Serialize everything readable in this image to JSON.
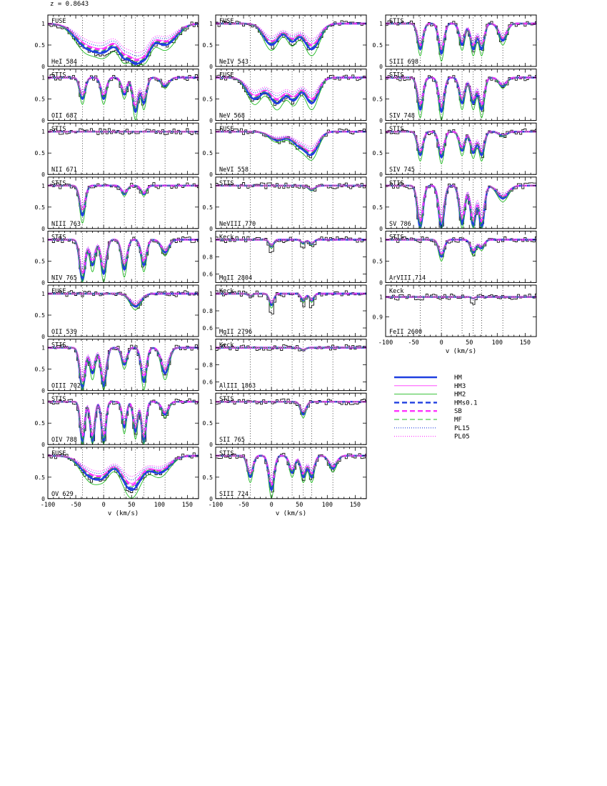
{
  "figure": {
    "redshift_label": "z = 0.8643"
  },
  "chart_data": {
    "type": "line",
    "title": "",
    "redshift": 0.8643,
    "xlabel": "v (km/s)",
    "xlim": [
      -100,
      170
    ],
    "xticks": [
      -100,
      -50,
      0,
      50,
      100,
      150
    ],
    "component_velocities": [
      -38,
      0,
      37,
      57,
      72,
      110
    ],
    "series_styles": [
      {
        "name": "HM",
        "color": "#1f3fe0",
        "dash": "",
        "width": 2.4
      },
      {
        "name": "HM3",
        "color": "#ff33ff",
        "dash": "",
        "width": 0.9
      },
      {
        "name": "HM2",
        "color": "#22bb22",
        "dash": "",
        "width": 0.9
      },
      {
        "name": "HMs0.1",
        "color": "#1f3fe0",
        "dash": "7,4",
        "width": 2.4
      },
      {
        "name": "SB",
        "color": "#ff33ff",
        "dash": "7,4",
        "width": 2.4
      },
      {
        "name": "MF",
        "color": "#22bb22",
        "dash": "7,4",
        "width": 0.9
      },
      {
        "name": "PL15",
        "color": "#1f3fe0",
        "dash": "1,2",
        "width": 1.1
      },
      {
        "name": "PL05",
        "color": "#ff33ff",
        "dash": "1,2",
        "width": 1.1
      }
    ],
    "panels": [
      {
        "column": 0,
        "row": 0,
        "instrument": "FUSE",
        "ion": "HeI 584",
        "ylim": [
          0,
          1.2
        ],
        "yticks": [
          0,
          0.5,
          1
        ],
        "lines": [
          {
            "v": -30,
            "d": 0.5,
            "w": 22
          },
          {
            "v": 0,
            "d": 0.6,
            "w": 20
          },
          {
            "v": 37,
            "d": 0.7,
            "w": 12
          },
          {
            "v": 57,
            "d": 0.9,
            "w": 14
          },
          {
            "v": 72,
            "d": 0.7,
            "w": 12
          },
          {
            "v": 110,
            "d": 0.5,
            "w": 20
          }
        ]
      },
      {
        "column": 0,
        "row": 1,
        "instrument": "STIS",
        "ion": "OII 687",
        "ylim": [
          0,
          1.2
        ],
        "yticks": [
          0,
          0.5,
          1
        ],
        "lines": [
          {
            "v": -38,
            "d": 0.5,
            "w": 5
          },
          {
            "v": 0,
            "d": 0.5,
            "w": 5
          },
          {
            "v": 37,
            "d": 0.4,
            "w": 5
          },
          {
            "v": 57,
            "d": 0.8,
            "w": 5
          },
          {
            "v": 72,
            "d": 0.6,
            "w": 5
          },
          {
            "v": 110,
            "d": 0.2,
            "w": 7
          }
        ]
      },
      {
        "column": 0,
        "row": 2,
        "instrument": "STIS",
        "ion": "NII 671",
        "ylim": [
          0,
          1.2
        ],
        "yticks": [
          0,
          0.5,
          1
        ],
        "lines": []
      },
      {
        "column": 0,
        "row": 3,
        "instrument": "STIS",
        "ion": "NIII 763",
        "ylim": [
          0,
          1.2
        ],
        "yticks": [
          0,
          0.5,
          1
        ],
        "lines": [
          {
            "v": -38,
            "d": 0.7,
            "w": 5
          },
          {
            "v": 37,
            "d": 0.2,
            "w": 5
          },
          {
            "v": 72,
            "d": 0.2,
            "w": 5
          }
        ]
      },
      {
        "column": 0,
        "row": 4,
        "instrument": "STIS",
        "ion": "NIV 765",
        "ylim": [
          0,
          1.2
        ],
        "yticks": [
          0,
          0.5,
          1
        ],
        "lines": [
          {
            "v": -38,
            "d": 0.95,
            "w": 5
          },
          {
            "v": -20,
            "d": 0.6,
            "w": 5
          },
          {
            "v": 0,
            "d": 0.8,
            "w": 5
          },
          {
            "v": 37,
            "d": 0.7,
            "w": 5
          },
          {
            "v": 72,
            "d": 0.6,
            "w": 5
          },
          {
            "v": 110,
            "d": 0.3,
            "w": 7
          }
        ]
      },
      {
        "column": 0,
        "row": 5,
        "instrument": "FUSE",
        "ion": "OII 539",
        "ylim": [
          0,
          1.2
        ],
        "yticks": [
          0,
          0.5,
          1
        ],
        "lines": [
          {
            "v": 57,
            "d": 0.3,
            "w": 10
          }
        ]
      },
      {
        "column": 0,
        "row": 6,
        "instrument": "STIS",
        "ion": "OIII 702",
        "ylim": [
          0,
          1.2
        ],
        "yticks": [
          0,
          0.5,
          1
        ],
        "lines": [
          {
            "v": -38,
            "d": 0.95,
            "w": 5
          },
          {
            "v": -20,
            "d": 0.6,
            "w": 5
          },
          {
            "v": 0,
            "d": 0.9,
            "w": 5
          },
          {
            "v": 37,
            "d": 0.4,
            "w": 5
          },
          {
            "v": 72,
            "d": 0.8,
            "w": 5
          },
          {
            "v": 110,
            "d": 0.6,
            "w": 7
          }
        ]
      },
      {
        "column": 0,
        "row": 7,
        "instrument": "STIS",
        "ion": "OIV 788",
        "ylim": [
          0,
          1.2
        ],
        "yticks": [
          0,
          0.5,
          1
        ],
        "lines": [
          {
            "v": -38,
            "d": 0.95,
            "w": 4
          },
          {
            "v": -20,
            "d": 0.95,
            "w": 4
          },
          {
            "v": 0,
            "d": 0.95,
            "w": 4
          },
          {
            "v": 37,
            "d": 0.6,
            "w": 4
          },
          {
            "v": 57,
            "d": 0.7,
            "w": 4
          },
          {
            "v": 72,
            "d": 0.95,
            "w": 4
          },
          {
            "v": 110,
            "d": 0.3,
            "w": 6
          }
        ]
      },
      {
        "column": 0,
        "row": 8,
        "instrument": "FUSE",
        "ion": "OV 629",
        "ylim": [
          0,
          1.2
        ],
        "yticks": [
          0,
          0.5,
          1
        ],
        "lines": [
          {
            "v": -20,
            "d": 0.5,
            "w": 20
          },
          {
            "v": 0,
            "d": 0.3,
            "w": 12
          },
          {
            "v": 50,
            "d": 0.8,
            "w": 18
          },
          {
            "v": 100,
            "d": 0.4,
            "w": 18
          }
        ]
      },
      {
        "column": 1,
        "row": 0,
        "instrument": "FUSE",
        "ion": "NeIV 543",
        "ylim": [
          0,
          1.2
        ],
        "yticks": [
          0,
          0.5,
          1
        ],
        "lines": [
          {
            "v": 0,
            "d": 0.5,
            "w": 14
          },
          {
            "v": 37,
            "d": 0.4,
            "w": 10
          },
          {
            "v": 72,
            "d": 0.6,
            "w": 14
          }
        ]
      },
      {
        "column": 1,
        "row": 1,
        "instrument": "FUSE",
        "ion": "NeV 568",
        "ylim": [
          0,
          1.2
        ],
        "yticks": [
          0,
          0.5,
          1
        ],
        "lines": [
          {
            "v": -30,
            "d": 0.5,
            "w": 14
          },
          {
            "v": 10,
            "d": 0.6,
            "w": 14
          },
          {
            "v": 40,
            "d": 0.5,
            "w": 10
          },
          {
            "v": 72,
            "d": 0.6,
            "w": 12
          }
        ]
      },
      {
        "column": 1,
        "row": 2,
        "instrument": "FUSE",
        "ion": "NeVI 558",
        "ylim": [
          0,
          1.2
        ],
        "yticks": [
          0,
          0.5,
          1
        ],
        "lines": [
          {
            "v": 10,
            "d": 0.2,
            "w": 14
          },
          {
            "v": 50,
            "d": 0.3,
            "w": 14
          },
          {
            "v": 72,
            "d": 0.5,
            "w": 12
          }
        ]
      },
      {
        "column": 1,
        "row": 3,
        "instrument": "STIS",
        "ion": "NeVIII 770",
        "ylim": [
          0,
          1.2
        ],
        "yticks": [
          0,
          0.5,
          1
        ],
        "lines": [
          {
            "v": 72,
            "d": 0.1,
            "w": 6
          }
        ]
      },
      {
        "column": 1,
        "row": 4,
        "instrument": "Keck",
        "ion": "MgII 2804",
        "ylim": [
          0.5,
          1.1
        ],
        "yticks": [
          0.6,
          0.8,
          1
        ],
        "lines": [
          {
            "v": 0,
            "d": 0.15,
            "w": 4
          },
          {
            "v": 57,
            "d": 0.08,
            "w": 4
          },
          {
            "v": 72,
            "d": 0.1,
            "w": 4
          }
        ]
      },
      {
        "column": 1,
        "row": 5,
        "instrument": "Keck",
        "ion": "MgII 2796",
        "ylim": [
          0.5,
          1.1
        ],
        "yticks": [
          0.6,
          0.8,
          1
        ],
        "lines": [
          {
            "v": -38,
            "d": 0.05,
            "w": 4
          },
          {
            "v": 0,
            "d": 0.25,
            "w": 4
          },
          {
            "v": 57,
            "d": 0.15,
            "w": 4
          },
          {
            "v": 72,
            "d": 0.15,
            "w": 4
          }
        ]
      },
      {
        "column": 1,
        "row": 6,
        "instrument": "Keck",
        "ion": "AlIII 1863",
        "ylim": [
          0.5,
          1.1
        ],
        "yticks": [
          0.6,
          0.8,
          1
        ],
        "lines": [
          {
            "v": 57,
            "d": 0.05,
            "w": 4
          }
        ]
      },
      {
        "column": 1,
        "row": 7,
        "instrument": "STIS",
        "ion": "SII 765",
        "ylim": [
          0,
          1.2
        ],
        "yticks": [
          0,
          0.5,
          1
        ],
        "lines": [
          {
            "v": 57,
            "d": 0.3,
            "w": 5
          }
        ]
      },
      {
        "column": 1,
        "row": 8,
        "instrument": "STIS",
        "ion": "SIII 724",
        "ylim": [
          0,
          1.2
        ],
        "yticks": [
          0,
          0.5,
          1
        ],
        "lines": [
          {
            "v": -38,
            "d": 0.5,
            "w": 5
          },
          {
            "v": 0,
            "d": 0.8,
            "w": 5
          },
          {
            "v": 37,
            "d": 0.4,
            "w": 5
          },
          {
            "v": 57,
            "d": 0.5,
            "w": 5
          },
          {
            "v": 72,
            "d": 0.5,
            "w": 5
          },
          {
            "v": 110,
            "d": 0.3,
            "w": 7
          }
        ]
      },
      {
        "column": 2,
        "row": 0,
        "instrument": "STIS",
        "ion": "SIII 698",
        "ylim": [
          0,
          1.2
        ],
        "yticks": [
          0,
          0.5,
          1
        ],
        "lines": [
          {
            "v": -38,
            "d": 0.6,
            "w": 5
          },
          {
            "v": 0,
            "d": 0.7,
            "w": 5
          },
          {
            "v": 37,
            "d": 0.5,
            "w": 5
          },
          {
            "v": 57,
            "d": 0.6,
            "w": 5
          },
          {
            "v": 72,
            "d": 0.6,
            "w": 5
          },
          {
            "v": 110,
            "d": 0.4,
            "w": 7
          }
        ]
      },
      {
        "column": 2,
        "row": 1,
        "instrument": "STIS",
        "ion": "SIV 748",
        "ylim": [
          0,
          1.2
        ],
        "yticks": [
          0,
          0.5,
          1
        ],
        "lines": [
          {
            "v": -38,
            "d": 0.75,
            "w": 5
          },
          {
            "v": 0,
            "d": 0.8,
            "w": 5
          },
          {
            "v": 37,
            "d": 0.6,
            "w": 5
          },
          {
            "v": 57,
            "d": 0.6,
            "w": 5
          },
          {
            "v": 72,
            "d": 0.75,
            "w": 5
          },
          {
            "v": 110,
            "d": 0.2,
            "w": 7
          }
        ]
      },
      {
        "column": 2,
        "row": 2,
        "instrument": "STIS",
        "ion": "SIV 745",
        "ylim": [
          0,
          1.2
        ],
        "yticks": [
          0,
          0.5,
          1
        ],
        "lines": [
          {
            "v": -38,
            "d": 0.55,
            "w": 5
          },
          {
            "v": 0,
            "d": 0.6,
            "w": 5
          },
          {
            "v": 37,
            "d": 0.45,
            "w": 5
          },
          {
            "v": 57,
            "d": 0.5,
            "w": 5
          },
          {
            "v": 72,
            "d": 0.55,
            "w": 5
          },
          {
            "v": 110,
            "d": 0.1,
            "w": 7
          }
        ]
      },
      {
        "column": 2,
        "row": 3,
        "instrument": "STIS",
        "ion": "SV 786",
        "ylim": [
          0,
          1.2
        ],
        "yticks": [
          0,
          0.5,
          1
        ],
        "lines": [
          {
            "v": -38,
            "d": 0.98,
            "w": 5
          },
          {
            "v": 0,
            "d": 0.98,
            "w": 5
          },
          {
            "v": 37,
            "d": 0.9,
            "w": 5
          },
          {
            "v": 57,
            "d": 0.95,
            "w": 5
          },
          {
            "v": 72,
            "d": 0.98,
            "w": 5
          },
          {
            "v": 110,
            "d": 0.3,
            "w": 10
          }
        ]
      },
      {
        "column": 2,
        "row": 4,
        "instrument": "STIS",
        "ion": "ArVIII 714",
        "ylim": [
          0,
          1.2
        ],
        "yticks": [
          0,
          0.5,
          1
        ],
        "lines": [
          {
            "v": 0,
            "d": 0.4,
            "w": 5
          },
          {
            "v": 57,
            "d": 0.3,
            "w": 5
          },
          {
            "v": 72,
            "d": 0.2,
            "w": 5
          }
        ]
      },
      {
        "column": 2,
        "row": 5,
        "instrument": "Keck",
        "ion": "FeII 2600",
        "ylim": [
          0.8,
          1.06
        ],
        "yticks": [
          0.9,
          1
        ],
        "lines": [
          {
            "v": 57,
            "d": 0.03,
            "w": 3
          }
        ]
      }
    ]
  },
  "legend": {
    "entries": [
      "HM",
      "HM3",
      "HM2",
      "HMs0.1",
      "SB",
      "MF",
      "PL15",
      "PL05"
    ]
  }
}
